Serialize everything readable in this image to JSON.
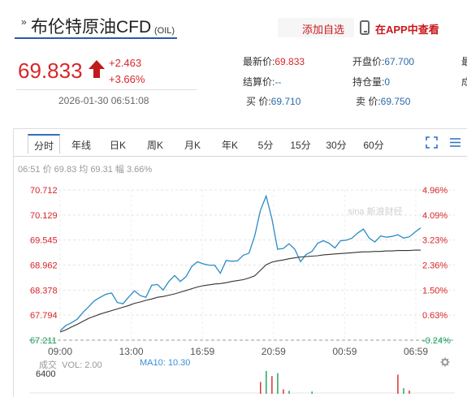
{
  "header": {
    "title_prefix": "»",
    "title": "布伦特原油CFD",
    "title_code": "(OIL)",
    "add_watch": "添加自选",
    "app_view": "在APP中查看"
  },
  "quote": {
    "price": "69.833",
    "change_abs": "+2.463",
    "change_pct": "+3.66%",
    "time": "2026-01-30 06:51:08",
    "direction_icon": "up-arrow-icon"
  },
  "stats": {
    "latest_label": "最新价:",
    "latest_value": "69.833",
    "settle_label": "结算价:",
    "settle_value": "--",
    "buy_label": "买  价:",
    "buy_value": "69.710",
    "open_label": "开盘价:",
    "open_value": "67.700",
    "oi_label": "持仓量:",
    "oi_value": "0",
    "sell_label": "卖  价:",
    "sell_value": "69.750",
    "cut_1": "最",
    "cut_2": "成"
  },
  "tabs": [
    "分时",
    "年线",
    "日K",
    "周K",
    "月K",
    "年K",
    "5分",
    "15分",
    "30分",
    "60分"
  ],
  "active_tab": "分时",
  "info": {
    "time": "06:51",
    "price_label": "价",
    "price": "69.83",
    "avg_label": "均",
    "avg": "69.31",
    "range_label": "幅",
    "range": "3.66%"
  },
  "watermark": "sina 新浪财经",
  "volume": {
    "title": "成交",
    "vol_label": "VOL: 2.00",
    "ma_label": "MA10: 10.30",
    "max_label": "6400"
  },
  "colors": {
    "up": "#d9262a",
    "down": "#13a05a",
    "price_line": "#2a8bc6",
    "avg_line": "#333333",
    "accent": "#2e6fc0"
  },
  "chart_data": {
    "type": "line",
    "x_ticks": [
      "09:00",
      "13:00",
      "16:59",
      "20:59",
      "00:59",
      "06:59"
    ],
    "y_left_ticks": [
      "70.712",
      "70.129",
      "69.545",
      "68.962",
      "68.378",
      "67.794",
      "67.211"
    ],
    "y_right_ticks": [
      "4.96%",
      "4.09%",
      "3.23%",
      "2.36%",
      "1.50%",
      "0.63%",
      "-0.24%"
    ],
    "ylim": [
      67.211,
      70.712
    ],
    "prev_close": 67.37,
    "series": [
      {
        "values": [
          67.43,
          67.55,
          67.62,
          67.7,
          67.86,
          67.99,
          68.13,
          68.21,
          68.28,
          68.31,
          68.09,
          68.06,
          68.22,
          68.36,
          68.25,
          68.21,
          68.49,
          68.51,
          68.38,
          68.58,
          68.72,
          68.58,
          68.69,
          68.93,
          69.04,
          68.99,
          68.96,
          68.96,
          68.77,
          69.07,
          69.05,
          69.06,
          69.19,
          69.24,
          69.64,
          70.24,
          70.57,
          70.04,
          69.33,
          69.35,
          69.46,
          69.33,
          69.04,
          69.21,
          69.28,
          69.47,
          69.53,
          69.47,
          69.36,
          69.53,
          69.54,
          69.59,
          69.71,
          69.8,
          69.59,
          69.5,
          69.64,
          69.61,
          69.63,
          69.67,
          69.59,
          69.62,
          69.73,
          69.83
        ]
      },
      {
        "values": [
          67.4,
          67.45,
          67.52,
          67.58,
          67.65,
          67.72,
          67.77,
          67.82,
          67.86,
          67.9,
          67.94,
          67.98,
          68.02,
          68.07,
          68.1,
          68.14,
          68.17,
          68.21,
          68.23,
          68.26,
          68.29,
          68.33,
          68.37,
          68.41,
          68.45,
          68.48,
          68.5,
          68.52,
          68.53,
          68.55,
          68.58,
          68.6,
          68.62,
          68.66,
          68.71,
          68.84,
          68.97,
          69.03,
          69.06,
          69.08,
          69.11,
          69.13,
          69.15,
          69.16,
          69.17,
          69.18,
          69.2,
          69.21,
          69.22,
          69.23,
          69.24,
          69.25,
          69.26,
          69.27,
          69.27,
          69.28,
          69.28,
          69.29,
          69.29,
          69.3,
          69.3,
          69.3,
          69.31,
          69.31
        ]
      }
    ],
    "volume_max": 6400,
    "volume": [
      0,
      0,
      0,
      0,
      0,
      0,
      0,
      0,
      0,
      0,
      0,
      0,
      0,
      0,
      0,
      0,
      0,
      0,
      0,
      0,
      0,
      0,
      0,
      0,
      0,
      0,
      0,
      0,
      0,
      0,
      0,
      0,
      0,
      0,
      0,
      3200,
      6200,
      4800,
      5600,
      1200,
      800,
      0,
      0,
      0,
      600,
      0,
      0,
      0,
      0,
      0,
      0,
      0,
      0,
      0,
      0,
      0,
      0,
      0,
      0,
      5200,
      1500,
      900,
      0,
      0
    ],
    "volume_colors": [
      "up",
      "down"
    ]
  }
}
